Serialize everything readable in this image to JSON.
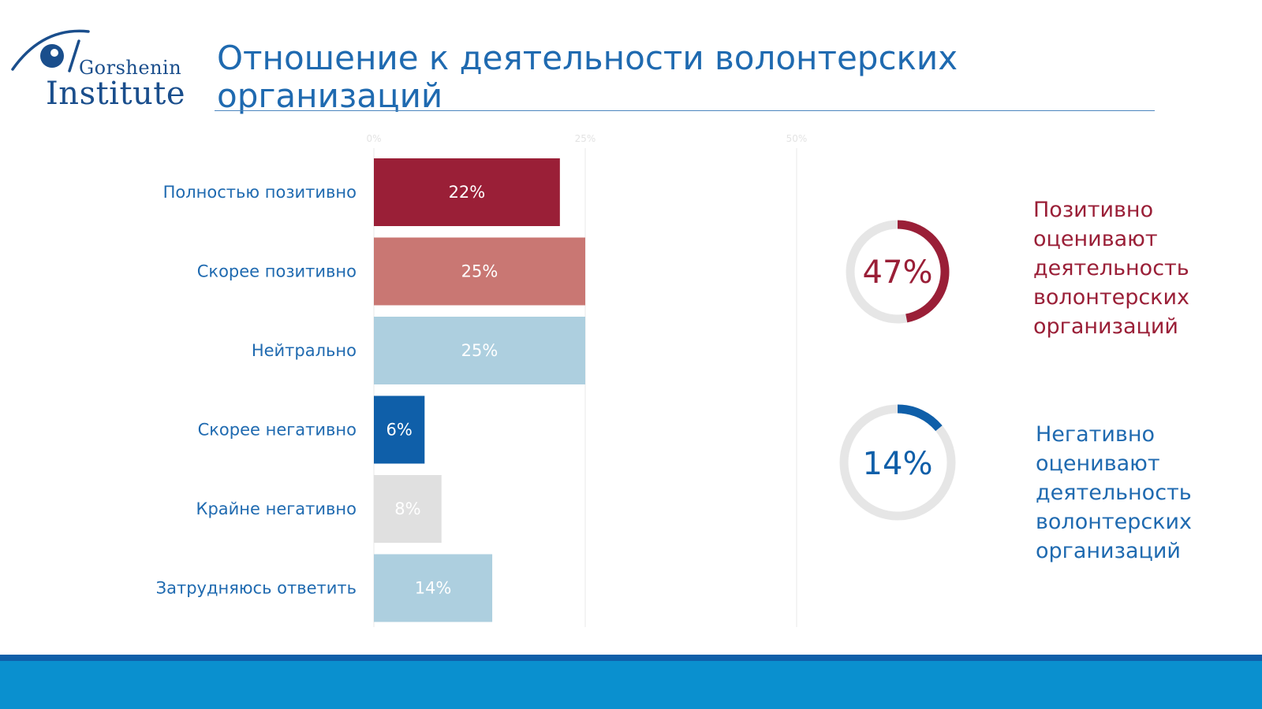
{
  "logo": {
    "word1": "Gorshenin",
    "word2": "Institute"
  },
  "title": "Отношение к деятельности волонтерских организаций",
  "chart_data": {
    "type": "bar",
    "orientation": "horizontal",
    "categories": [
      "Полностью позитивно",
      "Скорее позитивно",
      "Нейтрально",
      "Скорее негативно",
      "Крайне негативно",
      "Затрудняюсь ответить"
    ],
    "values": [
      22,
      25,
      25,
      6,
      8,
      14
    ],
    "value_labels": [
      "22%",
      "25%",
      "25%",
      "6%",
      "8%",
      "14%"
    ],
    "colors": [
      "#9a1f37",
      "#c97773",
      "#adcfdf",
      "#0f5fa9",
      "#e0e0e0",
      "#adcfdf"
    ],
    "xlim": [
      0,
      50
    ],
    "xticks": [
      0,
      25,
      50
    ],
    "xtick_labels": [
      "0%",
      "25%",
      "50%"
    ],
    "grid": true,
    "legend": "none"
  },
  "summary": [
    {
      "value": 47,
      "label": "47%",
      "text": "Позитивно оценивают деятельность волонтерских организаций",
      "color": "#9a1f37"
    },
    {
      "value": 14,
      "label": "14%",
      "text": "Негативно оценивают деятельность волонтерских организаций",
      "color": "#0f5fa9"
    }
  ],
  "colors": {
    "title": "#1f6ab0",
    "footer": "#0a90cf",
    "footer_stripe": "#0f5fa9",
    "donut_track": "#e6e6e6"
  }
}
